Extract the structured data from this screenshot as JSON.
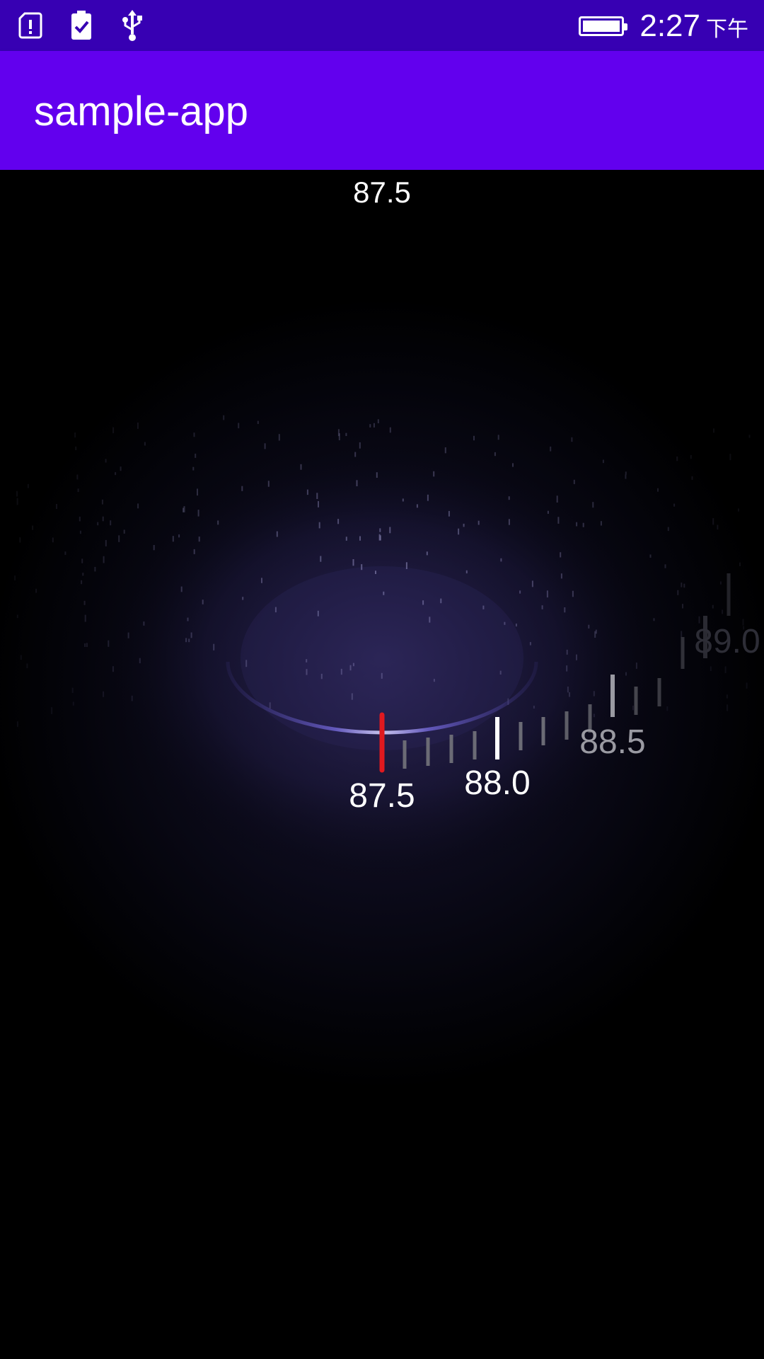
{
  "status_bar": {
    "icons": [
      "sim-alert-icon",
      "battery-check-icon",
      "usb-icon"
    ],
    "time": "2:27",
    "ampm": "下午"
  },
  "app_bar": {
    "title": "sample-app"
  },
  "radio": {
    "current_frequency": "87.5",
    "dial_labels": [
      "87.5",
      "88.0",
      "88.5",
      "89.0"
    ],
    "selected_frequency": "87.5",
    "colors": {
      "indicator": "#E0191F",
      "major_tick": "#FFFFFF",
      "minor_tick": "#6B6B75",
      "ring": "#5A4FB0"
    }
  }
}
